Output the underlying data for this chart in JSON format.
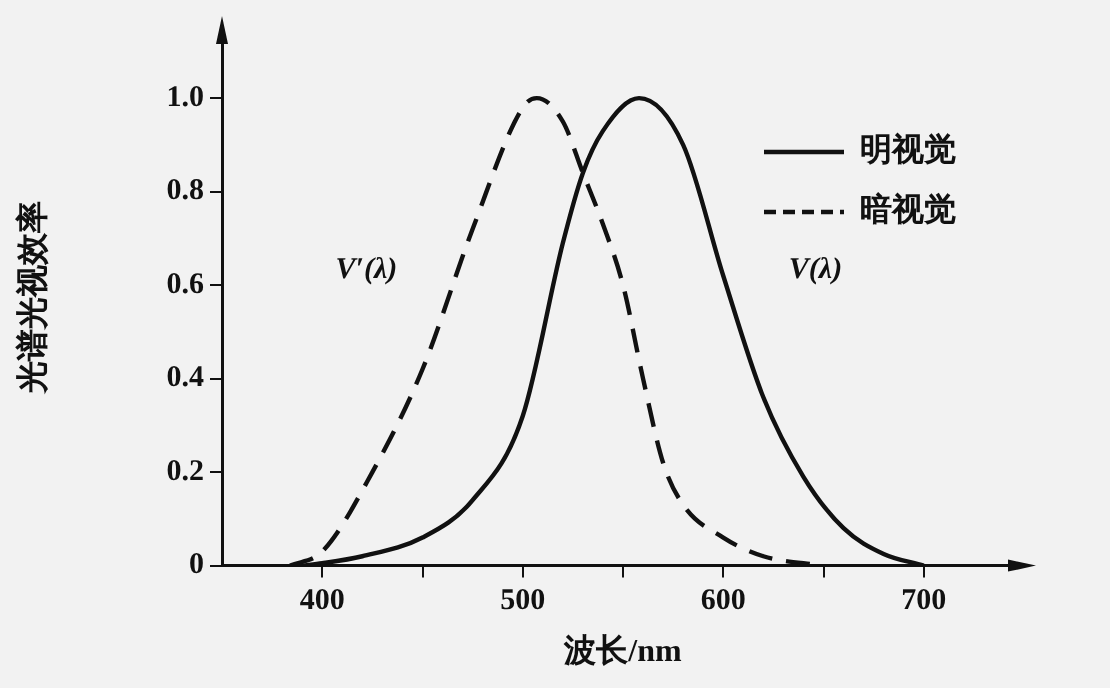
{
  "chart_data": {
    "type": "line",
    "xlabel": "波长/nm",
    "ylabel": "光谱光视效率",
    "xlim": [
      350,
      750
    ],
    "xticks": [
      400,
      {
        "value": 450,
        "label": null
      },
      500,
      {
        "value": 550,
        "label": null
      },
      600,
      {
        "value": 650,
        "label": null
      },
      700
    ],
    "ylim": [
      0,
      1.15
    ],
    "yticks": [
      0,
      0.2,
      0.4,
      0.6,
      0.8,
      {
        "value": 1,
        "label": "1.0"
      }
    ],
    "legend": "top right",
    "marker": "none",
    "series": [
      {
        "name": "明视觉",
        "color": "#111111",
        "line_style": "solid",
        "x": [
          390,
          400,
          420,
          450,
          475,
          500,
          520,
          530,
          540,
          558,
          580,
          600,
          620,
          640,
          660,
          680,
          700
        ],
        "values": [
          0,
          0.005,
          0.02,
          0.06,
          0.14,
          0.32,
          0.69,
          0.84,
          0.93,
          1.0,
          0.9,
          0.62,
          0.36,
          0.19,
          0.08,
          0.025,
          0
        ]
      },
      {
        "name": "暗视觉",
        "color": "#111111",
        "line_style": "dashed",
        "x": [
          384,
          400,
          425,
          450,
          475,
          500,
          507,
          520,
          530,
          540,
          550,
          560,
          570,
          580,
          600,
          620,
          650
        ],
        "values": [
          0,
          0.03,
          0.2,
          0.42,
          0.72,
          0.98,
          1.0,
          0.95,
          0.84,
          0.73,
          0.6,
          0.4,
          0.22,
          0.13,
          0.06,
          0.02,
          0
        ]
      }
    ],
    "annotations": [
      "V′(λ)",
      "V(λ)"
    ]
  }
}
